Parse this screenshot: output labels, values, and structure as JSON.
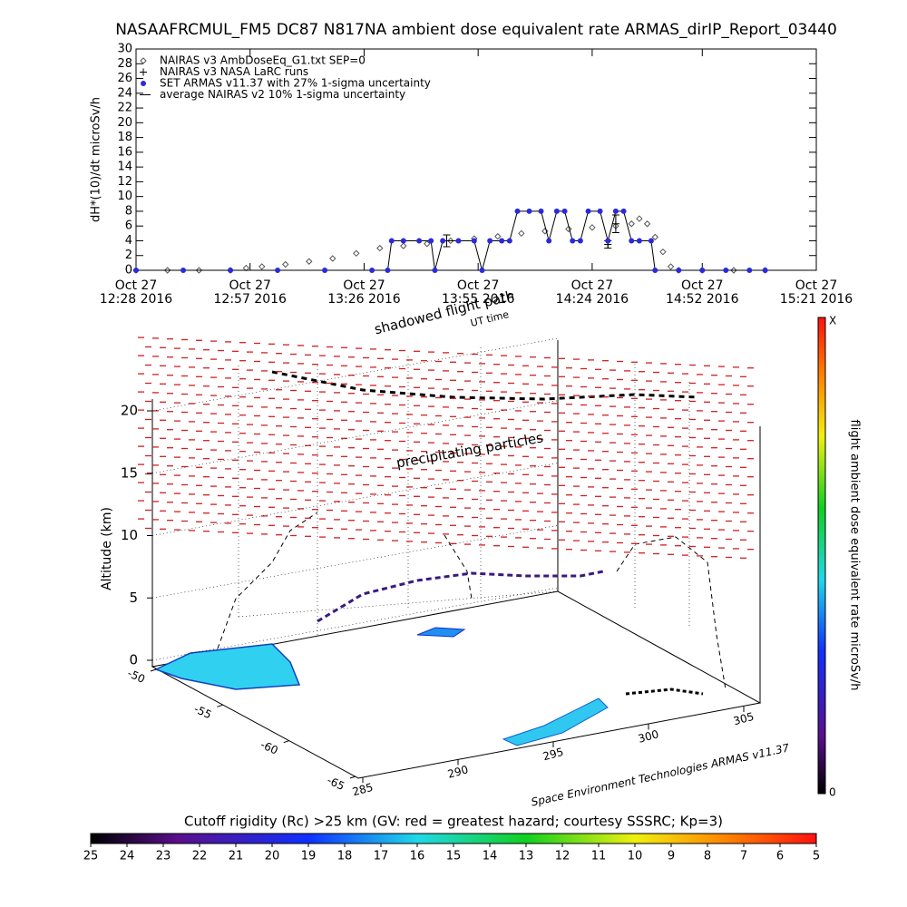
{
  "chart_data": [
    {
      "type": "line",
      "title": "NASAAFRCMUL_FM5 DC87 N817NA ambient dose equivalent rate ARMAS_dirIP_Report_03440",
      "y_label": "dH*(10)/dt microSv/h",
      "xlim": [
        "12:28",
        "15:21"
      ],
      "xticks": [
        {
          "value": "12:28",
          "label": "Oct 27 12:28 2016"
        },
        {
          "value": "12:57",
          "label": "Oct 27 12:57 2016"
        },
        {
          "value": "13:26",
          "label": "Oct 27 13:26 2016"
        },
        {
          "value": "13:55",
          "label": "Oct 27 13:55 2016"
        },
        {
          "value": "14:24",
          "label": "Oct 27 14:24 2016"
        },
        {
          "value": "14:52",
          "label": "Oct 27 14:52 2016"
        },
        {
          "value": "15:21",
          "label": "Oct 27 15:21 2016"
        }
      ],
      "ylim": [
        0,
        30
      ],
      "yticks": [
        0,
        2,
        4,
        6,
        8,
        10,
        12,
        14,
        16,
        18,
        20,
        22,
        24,
        26,
        28,
        30
      ],
      "series": [
        {
          "name": "NAIRAS v3 AmbDoseEq_G1.txt SEP=0",
          "color": "#555555",
          "marker": "diamond",
          "x": [
            "12:28",
            "12:36",
            "12:44",
            "12:52",
            "12:56",
            "13:00",
            "13:06",
            "13:12",
            "13:18",
            "13:24",
            "13:30",
            "13:36",
            "13:42",
            "13:48",
            "13:54",
            "14:00",
            "14:06",
            "14:12",
            "14:18",
            "14:24",
            "14:30",
            "14:34",
            "14:36",
            "14:38",
            "14:40",
            "14:42",
            "14:44",
            "14:46",
            "14:52",
            "15:00",
            "15:08"
          ],
          "values": [
            0,
            0,
            0,
            0,
            0.3,
            0.5,
            0.8,
            1.2,
            1.6,
            2.3,
            3,
            3.3,
            3.6,
            4,
            4.3,
            4.6,
            5,
            5.3,
            5.6,
            5.8,
            6,
            6.3,
            7,
            6.3,
            4.5,
            2.5,
            0.5,
            0,
            0,
            0,
            0
          ]
        },
        {
          "name": "NAIRAS v3 NASA LaRC runs",
          "color": "#000000",
          "marker": "plus",
          "x": [
            "13:47",
            "14:28",
            "14:30"
          ],
          "values": [
            4,
            3.5,
            6.3
          ],
          "errors": [
            0.8,
            0.5,
            1.2
          ]
        },
        {
          "name": "SET ARMAS v11.37 with 27% 1-sigma uncertainty",
          "color": "#2a2adc",
          "marker": "dot",
          "x": [
            "12:28",
            "12:40",
            "12:52",
            "13:04",
            "13:16",
            "13:28",
            "13:32",
            "13:33",
            "13:36",
            "13:40",
            "13:43",
            "13:44",
            "13:46",
            "13:50",
            "13:54",
            "13:56",
            "13:58",
            "14:01",
            "14:03",
            "14:05",
            "14:08",
            "14:11",
            "14:13",
            "14:15",
            "14:17",
            "14:19",
            "14:21",
            "14:23",
            "14:26",
            "14:28",
            "14:30",
            "14:32",
            "14:34",
            "14:36",
            "14:39",
            "14:40",
            "14:46",
            "14:52",
            "14:58",
            "15:04",
            "15:08"
          ],
          "values": [
            0,
            0,
            0,
            0,
            0,
            0,
            0,
            4,
            4,
            4,
            4,
            0,
            4,
            4,
            4,
            0,
            4,
            4,
            4,
            8,
            8,
            8,
            4,
            8,
            8,
            4,
            4,
            8,
            8,
            4,
            8,
            8,
            4,
            4,
            4,
            0,
            0,
            0,
            0,
            0,
            0
          ]
        },
        {
          "name": "average NAIRAS v2 10% 1-sigma uncertainty",
          "color": "#000000",
          "marker": "none",
          "x": [],
          "values": []
        }
      ]
    },
    {
      "type": "surface3d",
      "title": "shadowed flight path",
      "subtitle": "UT time",
      "annotation": "precipitating particles",
      "z_label": "Altitude (km)",
      "zlim": [
        0,
        20
      ],
      "zticks": [
        0,
        5,
        10,
        15,
        20
      ],
      "ylim": [
        -50,
        -65
      ],
      "yticks": [
        -50,
        -55,
        -60,
        -65
      ],
      "xlim": [
        285,
        305
      ],
      "xticks": [
        285,
        290,
        295,
        300,
        305
      ],
      "credit": "Space Environment Technologies ARMAS v11.37"
    },
    {
      "type": "colorbar",
      "label": "flight ambient dose equivalent rate microSv/h",
      "max_label": "X",
      "min": 0
    },
    {
      "type": "colorbar",
      "title": "Cutoff rigidity (Rc) >25 km (GV: red = greatest hazard; courtesy SSSRC; Kp=3)",
      "clim": [
        25,
        5
      ],
      "ticks": [
        25,
        24,
        23,
        22,
        21,
        20,
        19,
        18,
        17,
        16,
        15,
        14,
        13,
        12,
        11,
        10,
        9,
        8,
        7,
        6,
        5
      ]
    }
  ]
}
